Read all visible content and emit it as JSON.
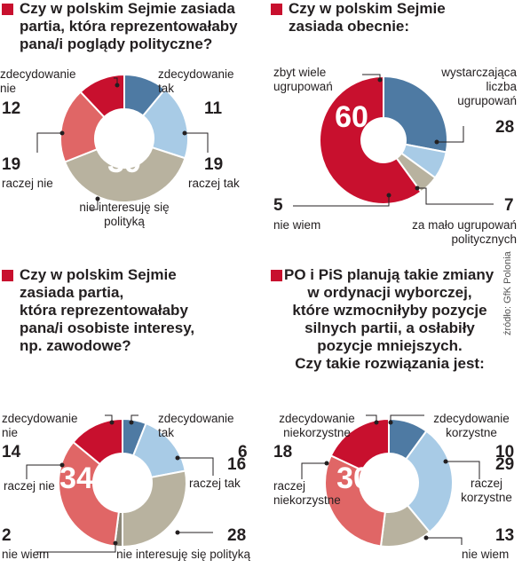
{
  "colors": {
    "red": "#c8102e",
    "light_red": "#e06666",
    "dark_blue": "#4e7aa3",
    "light_blue": "#a8cbe6",
    "gray": "#b8b29f",
    "line": "#231f20"
  },
  "source": "źródło: GfK Polonia",
  "chart_data": [
    {
      "type": "pie",
      "question": [
        "Czy w polskim Sejmie zasiada",
        "partia, która reprezentowałaby",
        "pana/i poglądy polityczne?"
      ],
      "highlight": "39",
      "slices": [
        {
          "label": [
            "zdecydowanie",
            "tak"
          ],
          "value": 11,
          "color": "#4e7aa3"
        },
        {
          "label": [
            "raczej tak"
          ],
          "value": 19,
          "color": "#a8cbe6"
        },
        {
          "label": [
            "nie interesuję się",
            "polityką"
          ],
          "value": 39,
          "color": "#b8b29f"
        },
        {
          "label": [
            "raczej nie"
          ],
          "value": 19,
          "color": "#e06666"
        },
        {
          "label": [
            "zdecydowanie",
            "nie"
          ],
          "value": 12,
          "color": "#c8102e"
        }
      ]
    },
    {
      "type": "pie",
      "question": [
        "Czy w polskim Sejmie",
        "zasiada obecnie:"
      ],
      "highlight": "60",
      "slices": [
        {
          "label": [
            "wystarczająca",
            "liczba",
            "ugrupowań"
          ],
          "value": 28,
          "color": "#4e7aa3"
        },
        {
          "label": [
            "za mało ugrupowań",
            "politycznych"
          ],
          "value": 7,
          "color": "#a8cbe6"
        },
        {
          "label": [
            "nie wiem"
          ],
          "value": 5,
          "color": "#b8b29f"
        },
        {
          "label": [
            "zbyt wiele",
            "ugrupowań"
          ],
          "value": 60,
          "color": "#c8102e"
        }
      ]
    },
    {
      "type": "pie",
      "question": [
        "Czy w polskim Sejmie",
        "zasiada partia,",
        "która reprezentowałaby",
        "pana/i osobiste interesy,",
        "np. zawodowe?"
      ],
      "highlight": "34",
      "slices": [
        {
          "label": [
            "zdecydowanie",
            "tak"
          ],
          "value": 6,
          "color": "#4e7aa3"
        },
        {
          "label": [
            "raczej tak"
          ],
          "value": 16,
          "color": "#a8cbe6"
        },
        {
          "label": [
            "nie interesuję się polityką"
          ],
          "value": 28,
          "color": "#b8b29f"
        },
        {
          "label": [
            "nie wiem"
          ],
          "value": 2,
          "color": "#8c8878"
        },
        {
          "label": [
            "raczej nie"
          ],
          "value": 34,
          "color": "#e06666"
        },
        {
          "label": [
            "zdecydowanie",
            "nie"
          ],
          "value": 14,
          "color": "#c8102e"
        }
      ]
    },
    {
      "type": "pie",
      "question": [
        "PO i PiS planują takie zmiany",
        "w ordynacji wyborczej,",
        "które wzmocniłyby pozycje",
        "silnych partii, a osłabiły",
        "pozycje mniejszych.",
        "Czy takie rozwiązania jest:"
      ],
      "highlight": "30",
      "slices": [
        {
          "label": [
            "zdecydowanie",
            "korzystne"
          ],
          "value": 10,
          "color": "#4e7aa3"
        },
        {
          "label": [
            "raczej",
            "korzystne"
          ],
          "value": 29,
          "color": "#a8cbe6"
        },
        {
          "label": [
            "nie wiem"
          ],
          "value": 13,
          "color": "#b8b29f"
        },
        {
          "label": [
            "raczej",
            "niekorzystne"
          ],
          "value": 30,
          "color": "#e06666"
        },
        {
          "label": [
            "zdecydowanie",
            "niekorzystne"
          ],
          "value": 18,
          "color": "#c8102e"
        }
      ]
    }
  ]
}
